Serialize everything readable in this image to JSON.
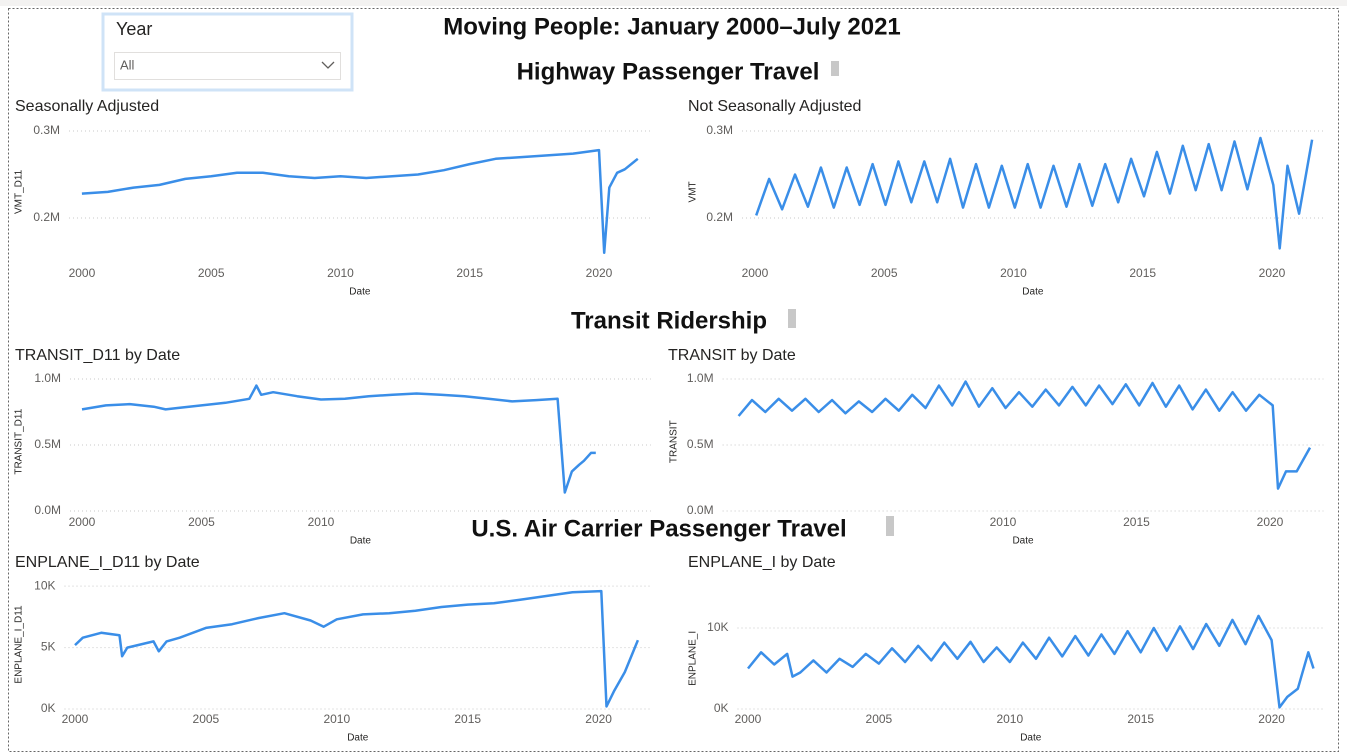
{
  "title": "Moving People: January 2000–July 2021",
  "slicer": {
    "label": "Year",
    "value": "All"
  },
  "sections": [
    "Highway Passenger Travel",
    "Transit Ridership",
    "U.S. Air Carrier Passenger Travel"
  ],
  "chart_data": [
    {
      "type": "line",
      "title": "Seasonally Adjusted",
      "x_label": "Date",
      "y_label": "VMT_D11",
      "color": "#3a8ee8",
      "xlim": [
        1999.5,
        2022
      ],
      "xticks": [
        2000,
        2005,
        2010,
        2015,
        2020
      ],
      "ylim": [
        150000,
        310000
      ],
      "yticks": [
        {
          "value": 200000,
          "label": "0.2M"
        },
        {
          "value": 300000,
          "label": "0.3M"
        }
      ],
      "x": [
        2000,
        2001,
        2002,
        2003,
        2004,
        2005,
        2006,
        2007,
        2008,
        2009,
        2010,
        2011,
        2012,
        2013,
        2014,
        2015,
        2016,
        2017,
        2018,
        2019,
        2020,
        2020.2,
        2020.4,
        2020.7,
        2021,
        2021.5
      ],
      "values": [
        228000,
        230000,
        235000,
        238000,
        245000,
        248000,
        252000,
        252000,
        248000,
        246000,
        248000,
        246000,
        248000,
        250000,
        255000,
        262000,
        268000,
        270000,
        272000,
        274000,
        278000,
        160000,
        235000,
        252000,
        256000,
        268000
      ]
    },
    {
      "type": "line",
      "title": "Not Seasonally Adjusted",
      "x_label": "Date",
      "y_label": "VMT",
      "color": "#3a8ee8",
      "xlim": [
        1999.5,
        2022
      ],
      "xticks": [
        2000,
        2005,
        2010,
        2015,
        2020
      ],
      "ylim": [
        150000,
        310000
      ],
      "yticks": [
        {
          "value": 200000,
          "label": "0.2M"
        },
        {
          "value": 300000,
          "label": "0.3M"
        }
      ],
      "x": [
        2000.05,
        2000.55,
        2001.05,
        2001.55,
        2002.05,
        2002.55,
        2003.05,
        2003.55,
        2004.05,
        2004.55,
        2005.05,
        2005.55,
        2006.05,
        2006.55,
        2007.05,
        2007.55,
        2008.05,
        2008.55,
        2009.05,
        2009.55,
        2010.05,
        2010.55,
        2011.05,
        2011.55,
        2012.05,
        2012.55,
        2013.05,
        2013.55,
        2014.05,
        2014.55,
        2015.05,
        2015.55,
        2016.05,
        2016.55,
        2017.05,
        2017.55,
        2018.05,
        2018.55,
        2019.05,
        2019.55,
        2020.05,
        2020.3,
        2020.6,
        2021.05,
        2021.55
      ],
      "values": [
        203000,
        245000,
        210000,
        250000,
        213000,
        258000,
        212000,
        258000,
        215000,
        262000,
        215000,
        265000,
        218000,
        265000,
        218000,
        268000,
        212000,
        262000,
        212000,
        260000,
        212000,
        262000,
        212000,
        260000,
        213000,
        262000,
        214000,
        262000,
        218000,
        268000,
        225000,
        276000,
        228000,
        283000,
        232000,
        285000,
        232000,
        288000,
        233000,
        292000,
        238000,
        165000,
        260000,
        205000,
        290000
      ]
    },
    {
      "type": "line",
      "title": "TRANSIT_D11 by Date",
      "x_label": "Date",
      "y_label": "TRANSIT_D11",
      "color": "#3a8ee8",
      "xlim": [
        1999.5,
        2023.8
      ],
      "xticks": [
        2000,
        2005,
        2010
      ],
      "ylim": [
        0,
        1050000
      ],
      "yticks": [
        {
          "value": 0,
          "label": "0.0M"
        },
        {
          "value": 500000,
          "label": "0.5M"
        },
        {
          "value": 1000000,
          "label": "1.0M"
        }
      ],
      "x": [
        2000,
        2001,
        2002,
        2003,
        2003.5,
        2004,
        2005,
        2006,
        2007,
        2007.3,
        2007.5,
        2008,
        2009,
        2010,
        2011,
        2012,
        2013,
        2014,
        2015,
        2016,
        2017,
        2018,
        2019,
        2019.9,
        2020.2,
        2020.5,
        2020.8,
        2021,
        2021.3,
        2021.5
      ],
      "values": [
        770000,
        800000,
        810000,
        790000,
        770000,
        780000,
        800000,
        820000,
        850000,
        950000,
        880000,
        900000,
        870000,
        845000,
        850000,
        870000,
        880000,
        890000,
        880000,
        870000,
        850000,
        830000,
        840000,
        850000,
        140000,
        300000,
        350000,
        380000,
        440000,
        440000
      ]
    },
    {
      "type": "line",
      "title": "TRANSIT by Date",
      "x_label": "Date",
      "y_label": "TRANSIT",
      "color": "#3a8ee8",
      "xlim": [
        1999.5,
        2022
      ],
      "xticks": [
        2010,
        2015,
        2020
      ],
      "ylim": [
        0,
        1050000
      ],
      "yticks": [
        {
          "value": 0,
          "label": "0.0M"
        },
        {
          "value": 500000,
          "label": "0.5M"
        },
        {
          "value": 1000000,
          "label": "1.0M"
        }
      ],
      "x": [
        2000.1,
        2000.6,
        2001.1,
        2001.6,
        2002.1,
        2002.6,
        2003.1,
        2003.6,
        2004.1,
        2004.6,
        2005.1,
        2005.6,
        2006.1,
        2006.6,
        2007.1,
        2007.6,
        2008.1,
        2008.6,
        2009.1,
        2009.6,
        2010.1,
        2010.6,
        2011.1,
        2011.6,
        2012.1,
        2012.6,
        2013.1,
        2013.6,
        2014.1,
        2014.6,
        2015.1,
        2015.6,
        2016.1,
        2016.6,
        2017.1,
        2017.6,
        2018.1,
        2018.6,
        2019.1,
        2019.6,
        2020.1,
        2020.3,
        2020.6,
        2021,
        2021.5
      ],
      "values": [
        720000,
        840000,
        750000,
        850000,
        760000,
        850000,
        750000,
        840000,
        740000,
        830000,
        750000,
        850000,
        760000,
        880000,
        780000,
        950000,
        800000,
        980000,
        790000,
        930000,
        780000,
        900000,
        790000,
        920000,
        800000,
        940000,
        800000,
        950000,
        810000,
        960000,
        800000,
        970000,
        790000,
        950000,
        770000,
        920000,
        760000,
        900000,
        760000,
        880000,
        800000,
        170000,
        300000,
        300000,
        480000
      ]
    },
    {
      "type": "line",
      "title": "ENPLANE_I_D11 by Date",
      "x_label": "Date",
      "y_label": "ENPLANE_I_D11",
      "color": "#3a8ee8",
      "xlim": [
        1999.6,
        2022
      ],
      "xticks": [
        2000,
        2005,
        2010,
        2015,
        2020
      ],
      "ylim": [
        0,
        10500
      ],
      "yticks": [
        {
          "value": 0,
          "label": "0K"
        },
        {
          "value": 5000,
          "label": "5K"
        },
        {
          "value": 10000,
          "label": "10K"
        }
      ],
      "x": [
        2000,
        2000.3,
        2001,
        2001.7,
        2001.8,
        2002,
        2003,
        2003.2,
        2003.5,
        2004,
        2005,
        2006,
        2007,
        2008,
        2009,
        2009.5,
        2010,
        2011,
        2012,
        2013,
        2014,
        2015,
        2016,
        2017,
        2018,
        2019,
        2020.1,
        2020.3,
        2020.6,
        2021,
        2021.5
      ],
      "values": [
        5200,
        5800,
        6200,
        6000,
        4300,
        5000,
        5500,
        4700,
        5500,
        5800,
        6600,
        6900,
        7400,
        7800,
        7200,
        6700,
        7300,
        7700,
        7800,
        8000,
        8300,
        8500,
        8600,
        8900,
        9200,
        9500,
        9600,
        200,
        1500,
        3000,
        5600
      ]
    },
    {
      "type": "line",
      "title": "ENPLANE_I by Date",
      "x_label": "Date",
      "y_label": "ENPLANE_I",
      "color": "#3a8ee8",
      "xlim": [
        1999.6,
        2022
      ],
      "xticks": [
        2000,
        2005,
        2010,
        2015,
        2020
      ],
      "ylim": [
        0,
        12500
      ],
      "yticks": [
        {
          "value": 0,
          "label": "0K"
        },
        {
          "value": 10000,
          "label": "10K"
        }
      ],
      "x": [
        2000,
        2000.5,
        2001,
        2001.5,
        2001.7,
        2002,
        2002.5,
        2003,
        2003.5,
        2004,
        2004.5,
        2005,
        2005.5,
        2006,
        2006.5,
        2007,
        2007.5,
        2008,
        2008.5,
        2009,
        2009.5,
        2010,
        2010.5,
        2011,
        2011.5,
        2012,
        2012.5,
        2013,
        2013.5,
        2014,
        2014.5,
        2015,
        2015.5,
        2016,
        2016.5,
        2017,
        2017.5,
        2018,
        2018.5,
        2019,
        2019.5,
        2020,
        2020.3,
        2020.6,
        2021,
        2021.4,
        2021.6
      ],
      "values": [
        5000,
        7000,
        5500,
        6800,
        4000,
        4500,
        6000,
        4500,
        6200,
        5200,
        6800,
        5600,
        7500,
        5800,
        7800,
        6000,
        8200,
        6200,
        8300,
        5800,
        7600,
        5800,
        8200,
        6200,
        8800,
        6500,
        9000,
        6600,
        9200,
        6800,
        9600,
        7000,
        10000,
        7200,
        10200,
        7400,
        10500,
        7800,
        11000,
        8000,
        11500,
        8500,
        200,
        1500,
        2500,
        7000,
        5000
      ]
    }
  ]
}
